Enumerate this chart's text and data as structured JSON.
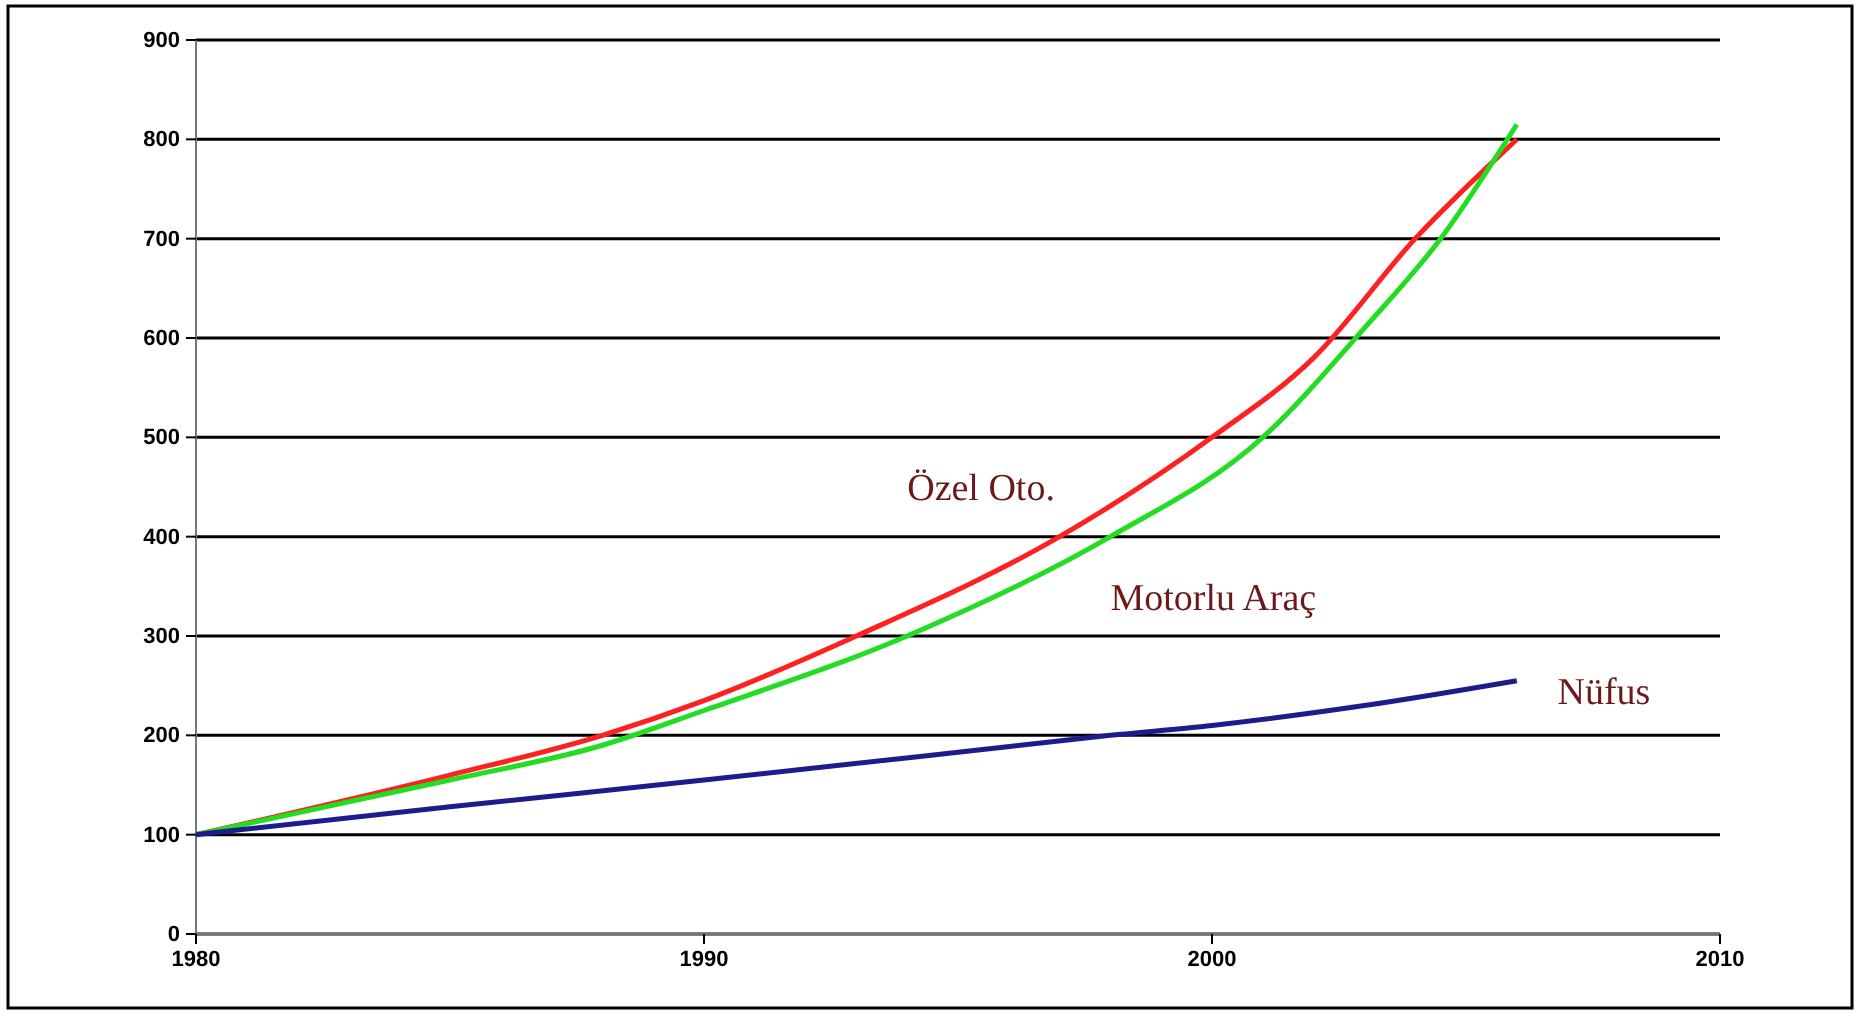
{
  "chart_data": {
    "type": "line",
    "xlim": [
      1980,
      2010
    ],
    "xticks": [
      1980,
      1990,
      2000,
      2010
    ],
    "ylim": [
      0,
      900
    ],
    "yticks": [
      0,
      100,
      200,
      300,
      400,
      500,
      600,
      700,
      800,
      900
    ],
    "grid": "y",
    "marker": "none",
    "line_style": "solid",
    "series": [
      {
        "name": "Özel Oto.",
        "color": "#ff2020",
        "x": [
          1980,
          1985,
          1988,
          1990,
          1993,
          1997,
          2000,
          2002,
          2004,
          2006
        ],
        "values": [
          100,
          160,
          200,
          235,
          300,
          400,
          500,
          580,
          700,
          800
        ]
      },
      {
        "name": "Motorlu Araç",
        "color": "#22dd22",
        "x": [
          1980,
          1985,
          1988,
          1990,
          1994,
          1998,
          2001,
          2003,
          2004.5,
          2006
        ],
        "values": [
          100,
          155,
          190,
          225,
          300,
          400,
          500,
          610,
          700,
          815
        ]
      },
      {
        "name": "Nüfus",
        "color": "#1c1c8c",
        "x": [
          1980,
          1985,
          1990,
          1995,
          1998,
          2000,
          2003,
          2006
        ],
        "values": [
          100,
          128,
          155,
          183,
          200,
          210,
          230,
          255
        ]
      }
    ]
  }
}
